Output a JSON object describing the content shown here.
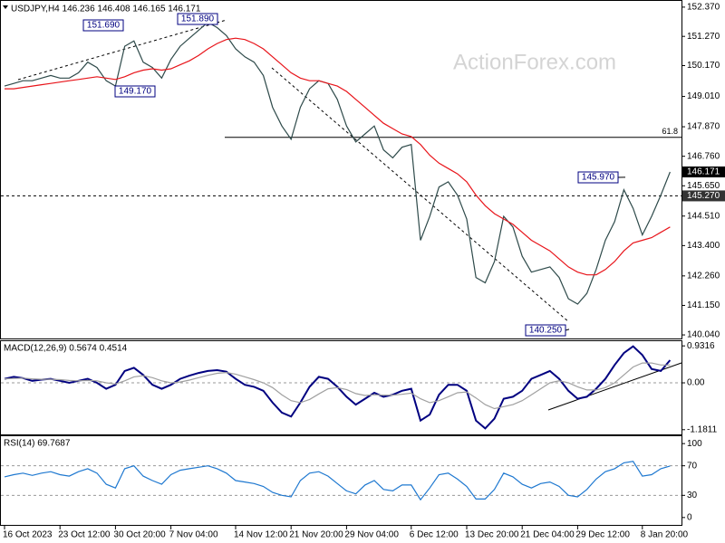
{
  "chart_data": [
    {
      "type": "line",
      "title": "USDJPY,H4  146.236 146.408 146.165 146.171",
      "watermark": "ActionForex.com",
      "categories": [
        "16 Oct 2023",
        null,
        null,
        null,
        null,
        null,
        "23 Oct 12:00",
        null,
        null,
        null,
        null,
        null,
        "30 Oct 20:00",
        null,
        null,
        null,
        null,
        null,
        "7 Nov 04:00",
        null,
        null,
        null,
        null,
        null,
        null,
        "14 Nov 12:00",
        null,
        null,
        null,
        null,
        null,
        "21 Nov 20:00",
        null,
        null,
        null,
        null,
        null,
        "29 Nov 04:00",
        null,
        null,
        null,
        null,
        null,
        null,
        "6 Dec 12:00",
        null,
        null,
        null,
        null,
        null,
        "13 Dec 20:00",
        null,
        null,
        null,
        null,
        null,
        "21 Dec 04:00",
        null,
        null,
        null,
        null,
        null,
        "29 Dec 12:00",
        null,
        null,
        null,
        null,
        null,
        null,
        "8 Jan 20:00",
        null,
        null,
        null
      ],
      "series": [
        {
          "color": "#2e4a4a",
          "values": [
            149.4,
            149.5,
            149.6,
            149.6,
            149.7,
            149.8,
            149.7,
            149.7,
            149.9,
            150.3,
            150.1,
            149.6,
            149.4,
            150.9,
            151.1,
            150.3,
            150.1,
            149.7,
            150.4,
            150.9,
            151.2,
            151.5,
            151.8,
            151.6,
            151.3,
            150.8,
            150.5,
            150.3,
            149.8,
            148.6,
            147.9,
            147.4,
            148.6,
            149.3,
            149.6,
            149.5,
            148.9,
            147.9,
            147.3,
            147.6,
            147.9,
            147.0,
            146.7,
            147.1,
            147.2,
            143.6,
            144.5,
            145.6,
            145.8,
            145.3,
            144.4,
            142.2,
            142.0,
            142.8,
            144.5,
            144.1,
            143.0,
            142.4,
            142.5,
            142.6,
            142.2,
            141.4,
            141.2,
            141.6,
            142.5,
            143.6,
            144.3,
            145.5,
            144.8,
            143.8,
            144.5,
            145.3,
            146.17
          ]
        },
        {
          "color": "#e8141a",
          "values": [
            149.3,
            149.3,
            149.35,
            149.4,
            149.45,
            149.5,
            149.55,
            149.6,
            149.65,
            149.7,
            149.75,
            149.7,
            149.65,
            149.75,
            149.9,
            150.0,
            150.05,
            150.0,
            150.05,
            150.2,
            150.35,
            150.55,
            150.8,
            151.0,
            151.15,
            151.2,
            151.15,
            151.0,
            150.8,
            150.5,
            150.2,
            149.9,
            149.7,
            149.6,
            149.6,
            149.5,
            149.4,
            149.2,
            148.9,
            148.6,
            148.3,
            148.0,
            147.8,
            147.6,
            147.5,
            147.2,
            146.8,
            146.5,
            146.3,
            146.1,
            145.8,
            145.3,
            144.9,
            144.6,
            144.4,
            144.2,
            143.9,
            143.6,
            143.4,
            143.2,
            142.9,
            142.6,
            142.4,
            142.3,
            142.3,
            142.5,
            142.8,
            143.2,
            143.5,
            143.6,
            143.7,
            143.9,
            144.1
          ]
        }
      ],
      "ylim": [
        139.94,
        152.57
      ],
      "yticks": [
        {
          "value": 152.37,
          "label": "152.370"
        },
        {
          "value": 151.27,
          "label": "151.270"
        },
        {
          "value": 150.17,
          "label": "150.170"
        },
        {
          "value": 149.01,
          "label": "149.010"
        },
        {
          "value": 147.87,
          "label": "147.870"
        },
        {
          "value": 146.76,
          "label": "146.760"
        },
        {
          "value": 145.65,
          "label": "145.650"
        },
        {
          "value": 144.51,
          "label": "144.510"
        },
        {
          "value": 143.4,
          "label": "143.400"
        },
        {
          "value": 142.26,
          "label": "142.260"
        },
        {
          "value": 141.15,
          "label": "141.150"
        },
        {
          "value": 140.04,
          "label": "140.040"
        }
      ],
      "fib": {
        "ratio": 61.8,
        "price": 147.47
      },
      "levels": [
        {
          "value": 145.27,
          "label": "145.270"
        }
      ],
      "last_price": {
        "value": 146.171,
        "label": "146.171"
      },
      "annotations": [
        {
          "value": 151.69,
          "label": "151.690"
        },
        {
          "value": 151.89,
          "label": "151.890"
        },
        {
          "value": 149.17,
          "label": "149.170"
        },
        {
          "value": 140.25,
          "label": "140.250"
        },
        {
          "value": 145.97,
          "label": "145.970"
        }
      ]
    },
    {
      "type": "line",
      "title": "MACD(12,26,9) 0.5674 0.4514",
      "series": [
        {
          "color": "#000080",
          "values": [
            0.1,
            0.15,
            0.12,
            0.05,
            0.08,
            0.1,
            0.05,
            0.0,
            0.05,
            0.1,
            0.0,
            -0.15,
            -0.05,
            0.3,
            0.38,
            0.2,
            -0.05,
            -0.15,
            -0.05,
            0.1,
            0.18,
            0.25,
            0.3,
            0.32,
            0.28,
            0.1,
            -0.05,
            -0.1,
            -0.2,
            -0.5,
            -0.75,
            -0.85,
            -0.5,
            -0.1,
            0.15,
            0.1,
            -0.1,
            -0.35,
            -0.55,
            -0.4,
            -0.25,
            -0.35,
            -0.3,
            -0.2,
            -0.15,
            -0.95,
            -0.8,
            -0.3,
            -0.05,
            -0.05,
            -0.2,
            -0.95,
            -1.15,
            -0.9,
            -0.4,
            -0.35,
            -0.2,
            0.1,
            0.2,
            0.3,
            0.1,
            -0.2,
            -0.4,
            -0.35,
            -0.15,
            0.1,
            0.45,
            0.75,
            0.92,
            0.7,
            0.35,
            0.3,
            0.57
          ]
        },
        {
          "color": "#a0a0a0",
          "values": [
            0.1,
            0.11,
            0.12,
            0.1,
            0.09,
            0.09,
            0.08,
            0.06,
            0.05,
            0.06,
            0.05,
            0.0,
            -0.03,
            0.05,
            0.15,
            0.18,
            0.13,
            0.05,
            0.0,
            0.02,
            0.07,
            0.13,
            0.19,
            0.24,
            0.26,
            0.22,
            0.15,
            0.08,
            0.0,
            -0.12,
            -0.3,
            -0.45,
            -0.5,
            -0.42,
            -0.28,
            -0.15,
            -0.12,
            -0.17,
            -0.27,
            -0.32,
            -0.3,
            -0.31,
            -0.31,
            -0.29,
            -0.26,
            -0.4,
            -0.5,
            -0.45,
            -0.35,
            -0.25,
            -0.23,
            -0.38,
            -0.55,
            -0.65,
            -0.6,
            -0.55,
            -0.45,
            -0.3,
            -0.15,
            0.0,
            0.05,
            0.0,
            -0.1,
            -0.18,
            -0.18,
            -0.12,
            0.0,
            0.2,
            0.4,
            0.5,
            0.5,
            0.45,
            0.45
          ]
        }
      ],
      "ylim": [
        -1.3,
        1.05
      ],
      "yticks": [
        0.9316,
        {
          "value": 0,
          "label": "0.00"
        },
        -1.1811
      ],
      "levels": [
        0
      ]
    },
    {
      "type": "line",
      "title": "RSI(14) 69.7687",
      "series": [
        {
          "color": "#1e78d0",
          "values": [
            55,
            58,
            60,
            57,
            60,
            62,
            58,
            56,
            62,
            66,
            60,
            45,
            40,
            66,
            70,
            56,
            50,
            45,
            58,
            64,
            66,
            68,
            70,
            66,
            60,
            50,
            48,
            46,
            42,
            34,
            30,
            28,
            50,
            60,
            62,
            56,
            46,
            36,
            32,
            44,
            50,
            38,
            36,
            44,
            44,
            24,
            40,
            58,
            60,
            52,
            42,
            25,
            25,
            38,
            60,
            55,
            45,
            40,
            46,
            48,
            42,
            30,
            28,
            38,
            52,
            62,
            66,
            74,
            76,
            56,
            58,
            66,
            69.77
          ]
        }
      ],
      "ylim": [
        -10,
        110
      ],
      "yticks": [
        0,
        30,
        70,
        100
      ],
      "levels": [
        70,
        30
      ]
    }
  ]
}
